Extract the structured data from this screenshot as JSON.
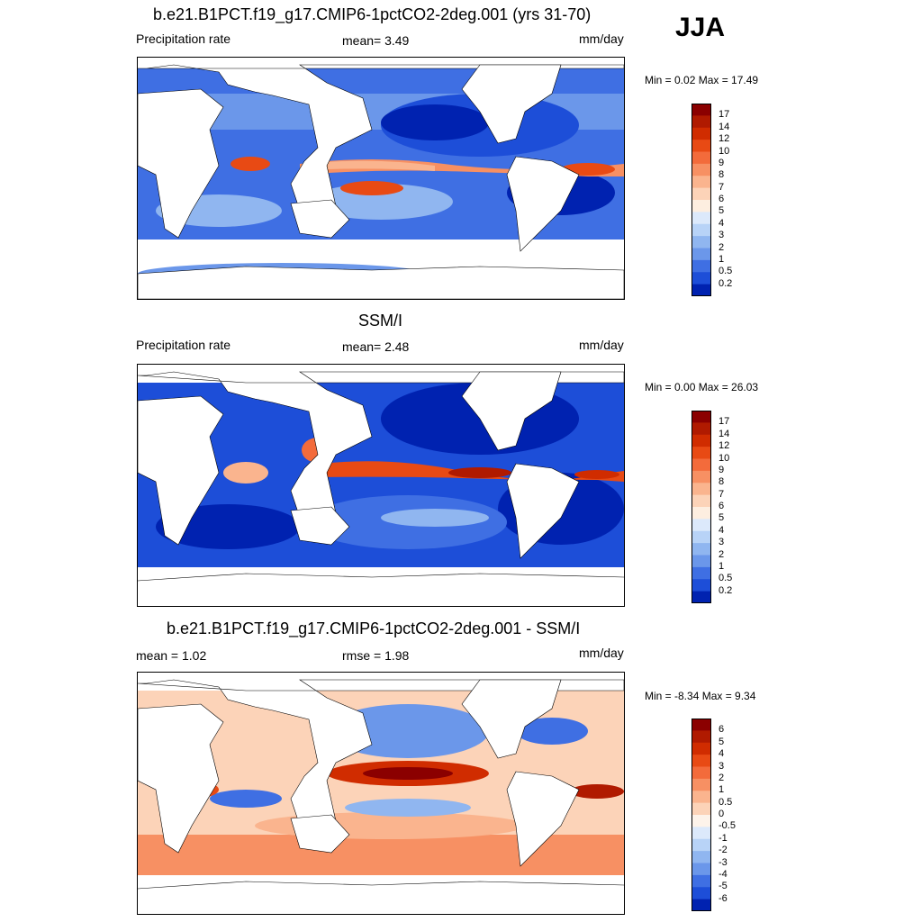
{
  "season": "JJA",
  "panels": [
    {
      "title": "b.e21.B1PCT.f19_g17.CMIP6-1pctCO2-2deg.001 (yrs 31-70)",
      "left_label": "Precipitation rate",
      "center_label": "mean=   3.49",
      "units": "mm/day",
      "minmax": "Min =   0.02 Max =  17.49"
    },
    {
      "title": "SSM/I",
      "left_label": "Precipitation rate",
      "center_label": "mean=   2.48",
      "units": "mm/day",
      "minmax": "Min =   0.00 Max =  26.03"
    },
    {
      "title": "b.e21.B1PCT.f19_g17.CMIP6-1pctCO2-2deg.001 - SSM/I",
      "left_label": "mean =   1.02",
      "center_label": "rmse =   1.98",
      "units": "mm/day",
      "minmax": "Min =  -8.34 Max =   9.34"
    }
  ],
  "chart_data": [
    {
      "type": "heatmap",
      "title": "b.e21.B1PCT.f19_g17.CMIP6-1pctCO2-2deg.001 (yrs 31-70)",
      "variable": "Precipitation rate",
      "units": "mm/day",
      "mean": 3.49,
      "min": 0.02,
      "max": 17.49,
      "colorbar": {
        "levels": [
          "17",
          "14",
          "12",
          "10",
          "9",
          "8",
          "7",
          "6",
          "5",
          "4",
          "3",
          "2",
          "1",
          "0.5",
          "0.2"
        ],
        "colors": [
          "#8b0000",
          "#b01a00",
          "#d02c00",
          "#e84a14",
          "#f36b3b",
          "#f79063",
          "#fab48e",
          "#fcd3b8",
          "#fdeee0",
          "#dce9fb",
          "#b8d3f7",
          "#90b6f0",
          "#6b97ea",
          "#3f6fe3",
          "#1d4ed8",
          "#0022b0"
        ]
      }
    },
    {
      "type": "heatmap",
      "title": "SSM/I",
      "variable": "Precipitation rate",
      "units": "mm/day",
      "mean": 2.48,
      "min": 0.0,
      "max": 26.03,
      "colorbar": {
        "levels": [
          "17",
          "14",
          "12",
          "10",
          "9",
          "8",
          "7",
          "6",
          "5",
          "4",
          "3",
          "2",
          "1",
          "0.5",
          "0.2"
        ],
        "colors": [
          "#8b0000",
          "#b01a00",
          "#d02c00",
          "#e84a14",
          "#f36b3b",
          "#f79063",
          "#fab48e",
          "#fcd3b8",
          "#fdeee0",
          "#dce9fb",
          "#b8d3f7",
          "#90b6f0",
          "#6b97ea",
          "#3f6fe3",
          "#1d4ed8",
          "#0022b0"
        ]
      }
    },
    {
      "type": "heatmap",
      "title": "b.e21.B1PCT.f19_g17.CMIP6-1pctCO2-2deg.001 - SSM/I",
      "units": "mm/day",
      "mean": 1.02,
      "rmse": 1.98,
      "min": -8.34,
      "max": 9.34,
      "colorbar": {
        "levels": [
          "6",
          "5",
          "4",
          "3",
          "2",
          "1",
          "0.5",
          "0",
          "-0.5",
          "-1",
          "-2",
          "-3",
          "-4",
          "-5",
          "-6"
        ],
        "colors": [
          "#8b0000",
          "#b01a00",
          "#d02c00",
          "#e84a14",
          "#f36b3b",
          "#f79063",
          "#fab48e",
          "#fcd3b8",
          "#fdf3ea",
          "#dce9fb",
          "#b8d3f7",
          "#90b6f0",
          "#6b97ea",
          "#3f6fe3",
          "#1d4ed8",
          "#0022b0"
        ]
      }
    }
  ]
}
